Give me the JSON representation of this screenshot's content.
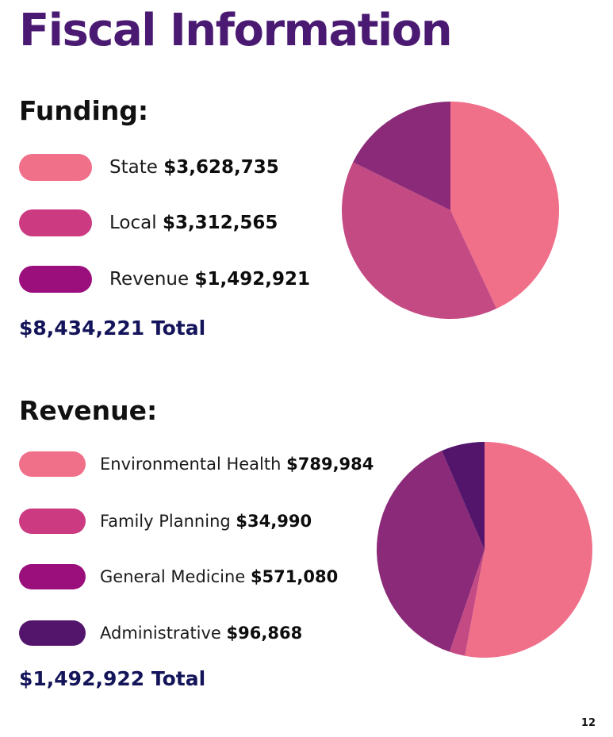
{
  "page": {
    "title": "Fiscal Information",
    "page_number": "12"
  },
  "funding": {
    "heading": "Funding:",
    "total": "$8,434,221 Total",
    "items": [
      {
        "label": "State",
        "amount": "$3,628,735",
        "color": "#f06f89"
      },
      {
        "label": "Local",
        "amount": "$3,312,565",
        "color": "#cc3a82"
      },
      {
        "label": "Revenue",
        "amount": "$1,492,921",
        "color": "#9b0f7d"
      }
    ]
  },
  "revenue": {
    "heading": "Revenue:",
    "total": "$1,492,922 Total",
    "items": [
      {
        "label": "Environmental Health",
        "amount": "$789,984",
        "color": "#f06f89"
      },
      {
        "label": "Family Planning",
        "amount": "$34,990",
        "color": "#cc3a82"
      },
      {
        "label": "General Medicine",
        "amount": "$571,080",
        "color": "#9b0f7d"
      },
      {
        "label": "Administrative",
        "amount": "$96,868",
        "color": "#52156b"
      }
    ]
  },
  "chart_data": [
    {
      "type": "pie",
      "categories": [
        "State",
        "Local",
        "Revenue"
      ],
      "values": [
        3628735,
        3312565,
        1492921
      ],
      "slice_colors": [
        "#f06f89",
        "#c44a84",
        "#8b2a78"
      ],
      "start": "12 o'clock, clockwise"
    },
    {
      "type": "pie",
      "categories": [
        "Environmental Health",
        "Family Planning",
        "General Medicine",
        "Administrative"
      ],
      "values": [
        789984,
        34990,
        571080,
        96868
      ],
      "slice_colors": [
        "#f06f89",
        "#c44a84",
        "#8b2a78",
        "#52156b"
      ],
      "start": "12 o'clock, clockwise"
    }
  ]
}
